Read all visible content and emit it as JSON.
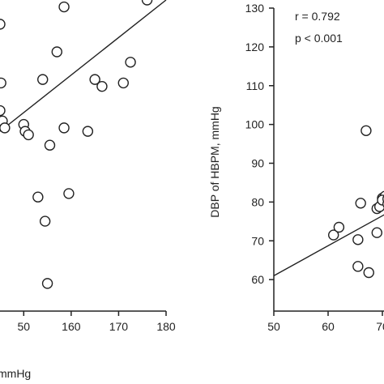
{
  "chart_data": [
    {
      "type": "scatter",
      "title": "",
      "xlabel": "mmHg",
      "ylabel": "",
      "xlim": [
        145,
        180
      ],
      "ylim": [
        95,
        185
      ],
      "x_ticks": [
        "50",
        "160",
        "170",
        "180"
      ],
      "points": {
        "x": [
          145,
          145.2,
          145,
          145.5,
          146,
          150,
          150.3,
          151,
          153,
          154,
          154.5,
          155,
          155.5,
          157,
          158.5,
          158.5,
          159.5,
          163.5,
          165,
          166.5,
          171,
          172.5,
          176
        ],
        "y": [
          178,
          161,
          153,
          150,
          148,
          149,
          147,
          146,
          128,
          162,
          121,
          103,
          143,
          170,
          183,
          148,
          129,
          147,
          162,
          160,
          161,
          167,
          185
        ]
      },
      "trendline": {
        "x": [
          145,
          180
        ],
        "y": [
          147,
          185
        ]
      }
    },
    {
      "type": "scatter",
      "title": "",
      "xlabel": "",
      "ylabel": "DBP of HBPM, mmHg",
      "xlim": [
        50,
        80
      ],
      "ylim": [
        50,
        130
      ],
      "x_ticks": [
        "50",
        "60",
        "70"
      ],
      "y_ticks": [
        "50",
        "60",
        "70",
        "80",
        "90",
        "100",
        "110",
        "120",
        "130"
      ],
      "annotations": [
        "r = 0.792",
        "p < 0.001"
      ],
      "points": {
        "x": [
          61,
          62,
          65.5,
          65.5,
          66,
          67,
          67.5,
          69,
          69,
          69.5,
          70,
          70.5,
          70,
          71,
          71.5,
          71
        ],
        "y": [
          71.5,
          73.5,
          70.3,
          63.4,
          79.7,
          98.4,
          61.8,
          72.1,
          78.3,
          78.8,
          81,
          81.5,
          80.5,
          79.5,
          80,
          80.8
        ]
      },
      "trendline": {
        "x": [
          50,
          72
        ],
        "y": [
          61,
          78
        ]
      }
    }
  ]
}
